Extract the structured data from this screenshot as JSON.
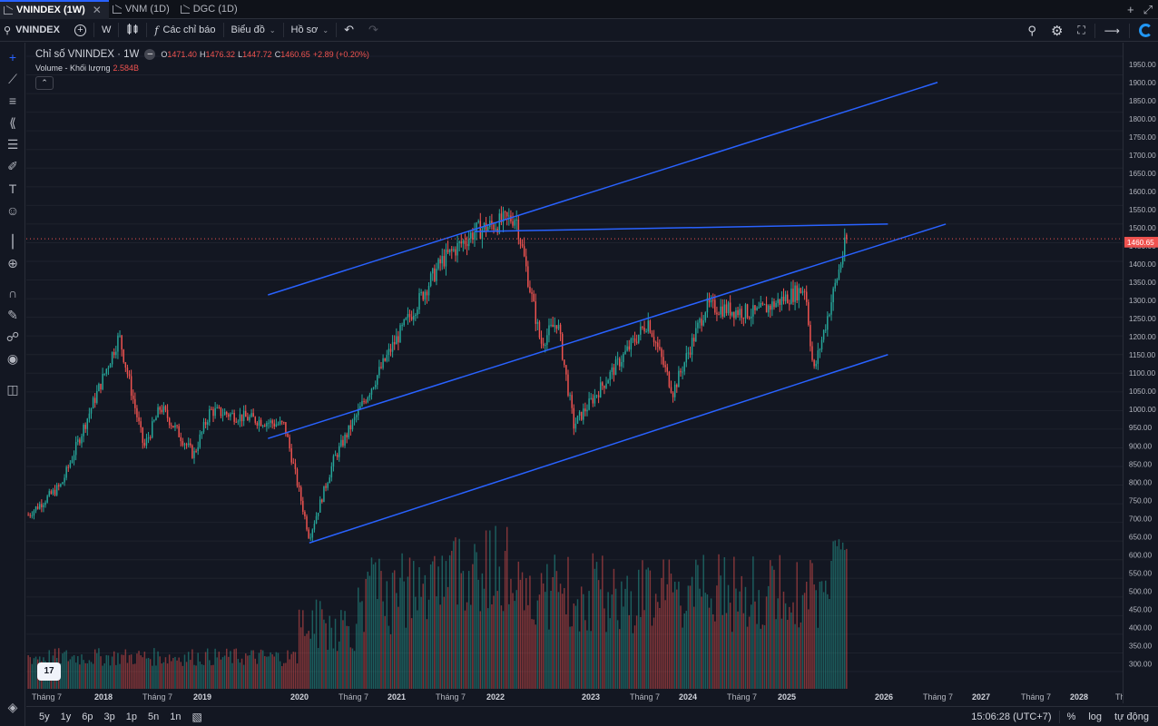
{
  "tabs": [
    {
      "label": "VNINDEX (1W)",
      "active": true
    },
    {
      "label": "VNM (1D)",
      "active": false
    },
    {
      "label": "DGC (1D)",
      "active": false
    }
  ],
  "window_controls": {
    "add": "+",
    "expand": "⤢"
  },
  "toolbar": {
    "symbol": "VNINDEX",
    "interval": "W",
    "indicators_label": "Các chỉ báo",
    "chart_label": "Biểu đồ",
    "profile_label": "Hồ sơ"
  },
  "legend": {
    "title": "Chỉ số VNINDEX · 1W",
    "o_label": "O",
    "o": "1471.40",
    "h_label": "H",
    "h": "1476.32",
    "l_label": "L",
    "l": "1447.72",
    "c_label": "C",
    "c": "1460.65",
    "change": "+2.89 (+0.20%)",
    "volume_label": "Volume - Khối lượng",
    "volume_value": "2.584B"
  },
  "colors": {
    "background": "#131722",
    "up": "#26a69a",
    "down": "#ef5350",
    "trendline": "#2962ff",
    "price_label_bg": "#ef5350"
  },
  "price_scale": {
    "labels": [
      "1950.00",
      "1900.00",
      "1850.00",
      "1800.00",
      "1750.00",
      "1700.00",
      "1650.00",
      "1600.00",
      "1550.00",
      "1500.00",
      "1450.00",
      "1400.00",
      "1350.00",
      "1300.00",
      "1250.00",
      "1200.00",
      "1150.00",
      "1100.00",
      "1050.00",
      "1000.00",
      "950.00",
      "900.00",
      "850.00",
      "800.00",
      "750.00",
      "700.00",
      "650.00",
      "600.00",
      "550.00",
      "500.00",
      "450.00",
      "400.00",
      "350.00",
      "300.00"
    ],
    "current_price": "1460.65"
  },
  "time_scale": {
    "labels": [
      "Tháng 7",
      "2018",
      "Tháng 7",
      "2019",
      "2020",
      "Tháng 7",
      "2021",
      "Tháng 7",
      "2022",
      "2023",
      "Tháng 7",
      "2024",
      "Tháng 7",
      "2025",
      "2026",
      "Tháng 7",
      "2027",
      "Tháng 7",
      "2028",
      "Tháng"
    ]
  },
  "bottom_bar": {
    "ranges": [
      "5y",
      "1y",
      "6p",
      "3p",
      "1p",
      "5n",
      "1n"
    ],
    "clock": "15:06:28 (UTC+7)",
    "percent": "%",
    "log": "log",
    "auto": "tự động"
  },
  "left_tools": [
    "crosshair-icon",
    "trendline-icon",
    "horizontal-lines-icon",
    "pattern-icon",
    "prediction-icon",
    "brush-icon",
    "text-icon",
    "emoji-icon",
    "ruler-icon",
    "zoom-in-icon",
    "magnet-icon",
    "lock-drawing-icon",
    "lock-icon",
    "eye-icon",
    "trash-icon",
    "object-tree-icon"
  ],
  "logo_text": "17",
  "chart_data": {
    "type": "candlestick",
    "symbol": "VNINDEX",
    "interval": "1W",
    "ylim": [
      300,
      1950
    ],
    "last": {
      "open": 1471.4,
      "high": 1476.32,
      "low": 1447.72,
      "close": 1460.65
    },
    "anchors": [
      {
        "t": "2017-05",
        "v": 720
      },
      {
        "t": "2017-09",
        "v": 800
      },
      {
        "t": "2018-04",
        "v": 1200
      },
      {
        "t": "2018-07",
        "v": 900
      },
      {
        "t": "2018-09",
        "v": 1010
      },
      {
        "t": "2019-01",
        "v": 880
      },
      {
        "t": "2019-03",
        "v": 1000
      },
      {
        "t": "2019-12",
        "v": 960
      },
      {
        "t": "2020-03",
        "v": 660
      },
      {
        "t": "2020-06",
        "v": 870
      },
      {
        "t": "2021-01",
        "v": 1170
      },
      {
        "t": "2021-07",
        "v": 1400
      },
      {
        "t": "2021-11",
        "v": 1480
      },
      {
        "t": "2022-04",
        "v": 1520
      },
      {
        "t": "2022-07",
        "v": 1180
      },
      {
        "t": "2022-09",
        "v": 1240
      },
      {
        "t": "2022-11",
        "v": 960
      },
      {
        "t": "2023-08",
        "v": 1240
      },
      {
        "t": "2023-11",
        "v": 1050
      },
      {
        "t": "2024-03",
        "v": 1280
      },
      {
        "t": "2024-09",
        "v": 1260
      },
      {
        "t": "2025-03",
        "v": 1330
      },
      {
        "t": "2025-04",
        "v": 1100
      },
      {
        "t": "2025-08",
        "v": 1460
      }
    ],
    "volume_scale": "B",
    "last_volume": "2.584B"
  }
}
